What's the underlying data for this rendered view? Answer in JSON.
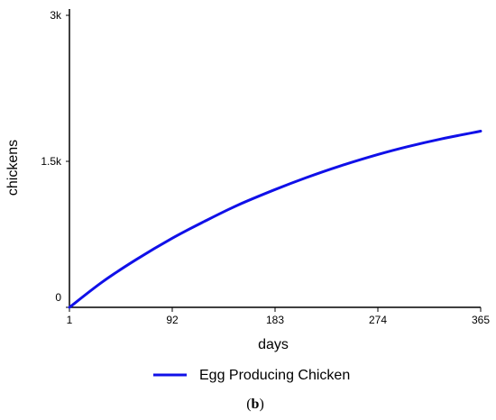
{
  "chart_data": {
    "type": "line",
    "xlabel": "days",
    "ylabel": "chickens",
    "xlim": [
      1,
      365
    ],
    "ylim": [
      0,
      3000
    ],
    "x_ticks": [
      1,
      92,
      183,
      274,
      365
    ],
    "x_tick_labels": [
      "1",
      "92",
      "183",
      "274",
      "365"
    ],
    "y_ticks": [
      0,
      1500,
      3000
    ],
    "y_tick_labels": [
      "0",
      "1.5k",
      "3k"
    ],
    "grid": false,
    "legend_position": "bottom",
    "series": [
      {
        "name": "Egg Producing Chicken",
        "color": "#1010e8",
        "x": [
          1,
          30,
          60,
          92,
          120,
          150,
          183,
          210,
          240,
          274,
          300,
          330,
          365
        ],
        "y": [
          0,
          260,
          490,
          710,
          880,
          1050,
          1210,
          1330,
          1450,
          1570,
          1650,
          1730,
          1810
        ]
      }
    ]
  },
  "caption": {
    "open": "(",
    "letter": "b",
    "close": ")"
  }
}
